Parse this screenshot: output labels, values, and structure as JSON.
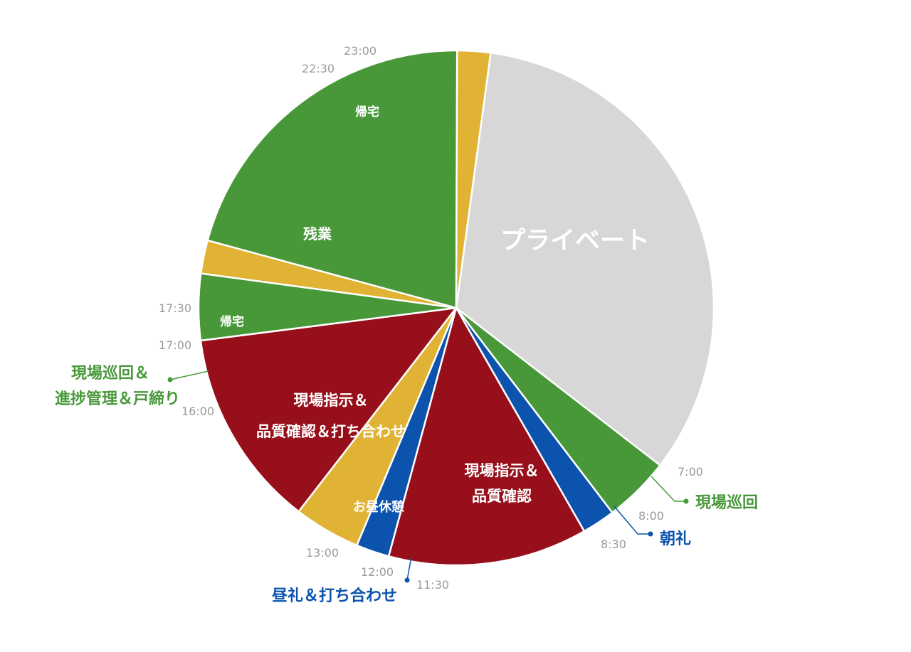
{
  "chart_data": {
    "type": "pie",
    "unit": "hours",
    "colors": {
      "private": "#d7d7d7",
      "green": "#48983a",
      "blue": "#0b53ad",
      "red": "#970f1b",
      "yellow": "#e0b334"
    },
    "slices": [
      {
        "start": "23:00",
        "end": "7:00",
        "hours": 8.0,
        "label": "プライベート",
        "color_key": "private"
      },
      {
        "start": "7:00",
        "end": "8:00",
        "hours": 1.0,
        "label": "現場巡回",
        "color_key": "green"
      },
      {
        "start": "8:00",
        "end": "8:30",
        "hours": 0.5,
        "label": "朝礼",
        "color_key": "blue"
      },
      {
        "start": "8:30",
        "end": "11:30",
        "hours": 3.0,
        "label": "現場指示＆品質確認",
        "color_key": "red"
      },
      {
        "start": "11:30",
        "end": "12:00",
        "hours": 0.5,
        "label": "昼礼＆打ち合わせ",
        "color_key": "blue"
      },
      {
        "start": "12:00",
        "end": "13:00",
        "hours": 1.0,
        "label": "お昼休憩",
        "color_key": "yellow"
      },
      {
        "start": "13:00",
        "end": "16:00",
        "hours": 3.0,
        "label": "現場指示＆品質確認＆打ち合わせ",
        "color_key": "red"
      },
      {
        "start": "16:00",
        "end": "17:00",
        "hours": 1.0,
        "label": "現場巡回＆進捗管理＆戸締り",
        "color_key": "green"
      },
      {
        "start": "17:00",
        "end": "17:30",
        "hours": 0.5,
        "label": "帰宅",
        "color_key": "yellow"
      },
      {
        "start": "17:30",
        "end": "22:30",
        "hours": 5.0,
        "label": "残業",
        "color_key": "green"
      },
      {
        "start": "22:30",
        "end": "23:00",
        "hours": 0.5,
        "label": "帰宅",
        "color_key": "yellow"
      }
    ],
    "time_ticks": [
      "23:00",
      "7:00",
      "8:00",
      "8:30",
      "11:30",
      "12:00",
      "13:00",
      "16:00",
      "17:00",
      "17:30",
      "22:30"
    ],
    "inside_labels": {
      "private": "プライベート",
      "zangyo": "残業",
      "kitaku_top": "帰宅",
      "kitaku_left": "帰宅",
      "red_right_line1": "現場指示＆",
      "red_right_line2": "品質確認",
      "red_left_line1": "現場指示＆",
      "red_left_line2": "品質確認＆打ち合わせ",
      "lunch": "お昼休憩"
    },
    "callouts": {
      "genba_junkai": "現場巡回",
      "chorei": "朝礼",
      "chu_rei": "昼礼＆打ち合わせ",
      "left_line1": "現場巡回＆",
      "left_line2": "進捗管理＆戸締り"
    }
  }
}
